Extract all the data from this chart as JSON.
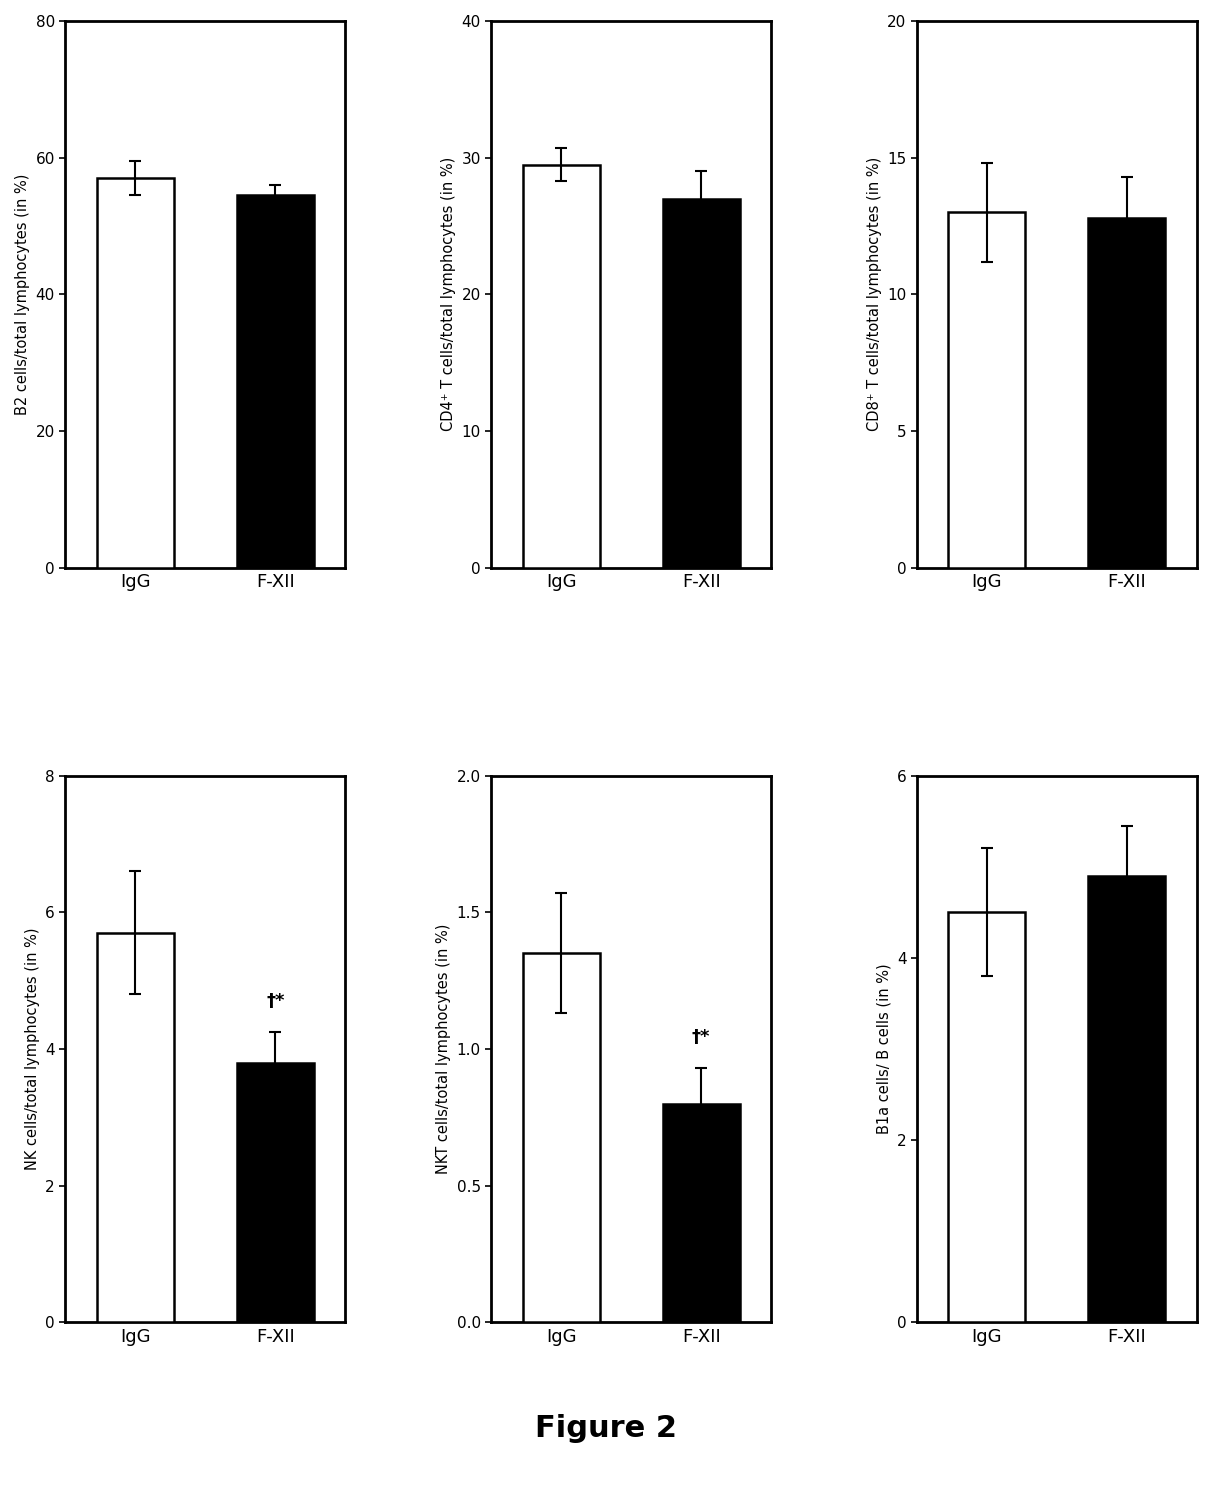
{
  "panels": [
    {
      "ylabel": "B2 cells/total lymphocytes (in %)",
      "ylim": [
        0,
        80
      ],
      "yticks": [
        0,
        20,
        40,
        60,
        80
      ],
      "bars": [
        {
          "label": "IgG",
          "value": 57.0,
          "err": 2.5,
          "color": "white"
        },
        {
          "label": "F-XII",
          "value": 54.5,
          "err": 1.5,
          "color": "black"
        }
      ],
      "significant": false
    },
    {
      "ylabel": "CD4⁺ T cells/total lymphocytes (in %)",
      "ylim": [
        0,
        40
      ],
      "yticks": [
        0,
        10,
        20,
        30,
        40
      ],
      "bars": [
        {
          "label": "IgG",
          "value": 29.5,
          "err": 1.2,
          "color": "white"
        },
        {
          "label": "F-XII",
          "value": 27.0,
          "err": 2.0,
          "color": "black"
        }
      ],
      "significant": false
    },
    {
      "ylabel": "CD8⁺ T cells/total lymphocytes (in %)",
      "ylim": [
        0,
        20
      ],
      "yticks": [
        0,
        5,
        10,
        15,
        20
      ],
      "bars": [
        {
          "label": "IgG",
          "value": 13.0,
          "err": 1.8,
          "color": "white"
        },
        {
          "label": "F-XII",
          "value": 12.8,
          "err": 1.5,
          "color": "black"
        }
      ],
      "significant": false
    },
    {
      "ylabel": "NK cells/total lymphocytes (in %)",
      "ylim": [
        0,
        8
      ],
      "yticks": [
        0,
        2,
        4,
        6,
        8
      ],
      "bars": [
        {
          "label": "IgG",
          "value": 5.7,
          "err": 0.9,
          "color": "white"
        },
        {
          "label": "F-XII",
          "value": 3.8,
          "err": 0.45,
          "color": "black"
        }
      ],
      "significant": true
    },
    {
      "ylabel": "NKT cells/total lymphocytes (in %)",
      "ylim": [
        0.0,
        2.0
      ],
      "yticks": [
        0.0,
        0.5,
        1.0,
        1.5,
        2.0
      ],
      "bars": [
        {
          "label": "IgG",
          "value": 1.35,
          "err": 0.22,
          "color": "white"
        },
        {
          "label": "F-XII",
          "value": 0.8,
          "err": 0.13,
          "color": "black"
        }
      ],
      "significant": true
    },
    {
      "ylabel": "B1a cells/ B cells (in %)",
      "ylim": [
        0,
        6
      ],
      "yticks": [
        0,
        2,
        4,
        6
      ],
      "bars": [
        {
          "label": "IgG",
          "value": 4.5,
          "err": 0.7,
          "color": "white"
        },
        {
          "label": "F-XII",
          "value": 4.9,
          "err": 0.55,
          "color": "black"
        }
      ],
      "significant": false
    }
  ],
  "figure_title": "Figure 2",
  "background_color": "white",
  "bar_width": 0.55,
  "xlabel_fontsize": 13,
  "ylabel_fontsize": 10.5,
  "tick_fontsize": 11,
  "title_fontsize": 22,
  "bar_edgecolor": "black",
  "error_capsize": 4,
  "error_linewidth": 1.5
}
